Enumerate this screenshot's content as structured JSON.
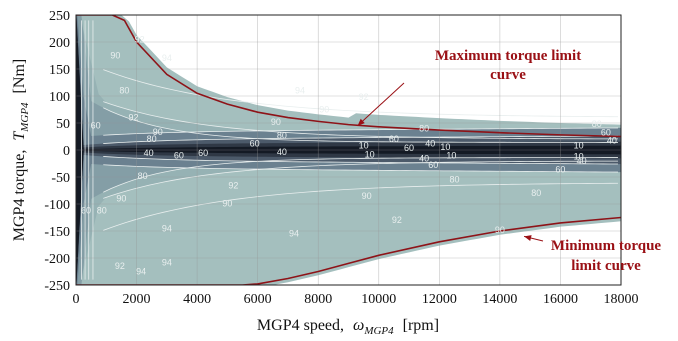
{
  "chart_data": {
    "type": "heatmap",
    "subtype": "efficiency-contour-map",
    "title": "",
    "xlabel_main": "MGP4 speed,",
    "xlabel_symbol": "ω",
    "xlabel_sub": "MGP4",
    "xlabel_unit": "[rpm]",
    "ylabel_main": "MGP4 torque,",
    "ylabel_symbol": "T",
    "ylabel_sub": "MGP4",
    "ylabel_unit": "[Nm]",
    "xlim": [
      0,
      18000
    ],
    "ylim": [
      -250,
      250
    ],
    "xticks": [
      "0",
      "2000",
      "4000",
      "6000",
      "8000",
      "10000",
      "12000",
      "14000",
      "16000",
      "18000"
    ],
    "yticks": [
      "250",
      "200",
      "150",
      "100",
      "50",
      "0",
      "-50",
      "-100",
      "-150",
      "-200",
      "-250"
    ],
    "grid": true,
    "contour_levels": [
      10,
      40,
      60,
      80,
      90,
      92,
      94
    ],
    "colors": {
      "eff_94": "#a4bfbe",
      "eff_92": "#96b2b4",
      "eff_90": "#849ea6",
      "eff_80": "#6b8190",
      "eff_60": "#4c5a6a",
      "eff_40": "#2f3845",
      "eff_10": "#141a24",
      "limit_curve": "#8e1318",
      "annotation": "#9a1015"
    },
    "max_torque_limit": {
      "name": "Maximum torque limit curve",
      "x": [
        0,
        1200,
        1600,
        2000,
        3000,
        4000,
        5000,
        6000,
        7000,
        8000,
        9000,
        10000,
        12000,
        14000,
        16000,
        18000
      ],
      "y": [
        250,
        250,
        240,
        200,
        140,
        105,
        85,
        70,
        60,
        53,
        47,
        43,
        37,
        32,
        28,
        25
      ]
    },
    "min_torque_limit": {
      "name": "Minimum torque limit curve",
      "x": [
        0,
        5500,
        6000,
        7000,
        8000,
        9000,
        10000,
        12000,
        14000,
        16000,
        18000
      ],
      "y": [
        -250,
        -250,
        -248,
        -238,
        -225,
        -210,
        -195,
        -170,
        -150,
        -135,
        -125
      ]
    },
    "contour_labels": [
      {
        "text": "94",
        "x": 3000,
        "y": 170
      },
      {
        "text": "92",
        "x": 2100,
        "y": 205
      },
      {
        "text": "90",
        "x": 1300,
        "y": 175
      },
      {
        "text": "80",
        "x": 1600,
        "y": 110
      },
      {
        "text": "60",
        "x": 650,
        "y": 45
      },
      {
        "text": "94",
        "x": 7400,
        "y": 110
      },
      {
        "text": "92",
        "x": 9500,
        "y": 98
      },
      {
        "text": "90",
        "x": 8200,
        "y": 75
      },
      {
        "text": "92",
        "x": 1900,
        "y": 60
      },
      {
        "text": "90",
        "x": 2700,
        "y": 33
      },
      {
        "text": "90",
        "x": 6600,
        "y": 52
      },
      {
        "text": "80",
        "x": 2500,
        "y": 20
      },
      {
        "text": "80",
        "x": 6800,
        "y": 27
      },
      {
        "text": "80",
        "x": 11500,
        "y": 40
      },
      {
        "text": "80",
        "x": 17200,
        "y": 48
      },
      {
        "text": "60",
        "x": 5900,
        "y": 12
      },
      {
        "text": "60",
        "x": 10500,
        "y": 20
      },
      {
        "text": "60",
        "x": 17500,
        "y": 32
      },
      {
        "text": "60",
        "x": 11000,
        "y": 4
      },
      {
        "text": "40",
        "x": 11700,
        "y": 12
      },
      {
        "text": "40",
        "x": 17700,
        "y": 18
      },
      {
        "text": "10",
        "x": 9500,
        "y": 8
      },
      {
        "text": "10",
        "x": 12200,
        "y": 6
      },
      {
        "text": "10",
        "x": 16600,
        "y": 8
      },
      {
        "text": "40",
        "x": 2400,
        "y": -6
      },
      {
        "text": "60",
        "x": 3400,
        "y": -10
      },
      {
        "text": "40",
        "x": 6800,
        "y": -4
      },
      {
        "text": "60",
        "x": 4200,
        "y": -6
      },
      {
        "text": "10",
        "x": 9700,
        "y": -8
      },
      {
        "text": "10",
        "x": 12400,
        "y": -10
      },
      {
        "text": "10",
        "x": 16600,
        "y": -12
      },
      {
        "text": "40",
        "x": 11500,
        "y": -16
      },
      {
        "text": "40",
        "x": 16700,
        "y": -20
      },
      {
        "text": "60",
        "x": 11800,
        "y": -28
      },
      {
        "text": "60",
        "x": 16000,
        "y": -36
      },
      {
        "text": "80",
        "x": 12500,
        "y": -55
      },
      {
        "text": "80",
        "x": 15200,
        "y": -80
      },
      {
        "text": "80",
        "x": 2200,
        "y": -48
      },
      {
        "text": "92",
        "x": 5200,
        "y": -66
      },
      {
        "text": "90",
        "x": 5000,
        "y": -99
      },
      {
        "text": "90",
        "x": 9600,
        "y": -85
      },
      {
        "text": "92",
        "x": 10600,
        "y": -130
      },
      {
        "text": "90",
        "x": 14000,
        "y": -148
      },
      {
        "text": "94",
        "x": 7200,
        "y": -155
      },
      {
        "text": "94",
        "x": 3000,
        "y": -145
      },
      {
        "text": "90",
        "x": 1500,
        "y": -90
      },
      {
        "text": "80",
        "x": 850,
        "y": -112
      },
      {
        "text": "60",
        "x": 330,
        "y": -112
      },
      {
        "text": "92",
        "x": 1450,
        "y": -215
      },
      {
        "text": "94",
        "x": 2150,
        "y": -225
      },
      {
        "text": "94",
        "x": 3000,
        "y": -208
      }
    ],
    "annotations": [
      {
        "lines": [
          "Maximum torque limit",
          "curve"
        ],
        "arrow_to_x": 9300,
        "arrow_to_y": 45
      },
      {
        "lines": [
          "Minimum torque",
          "limit curve"
        ],
        "arrow_to_x": 14800,
        "arrow_to_y": -160
      }
    ]
  }
}
